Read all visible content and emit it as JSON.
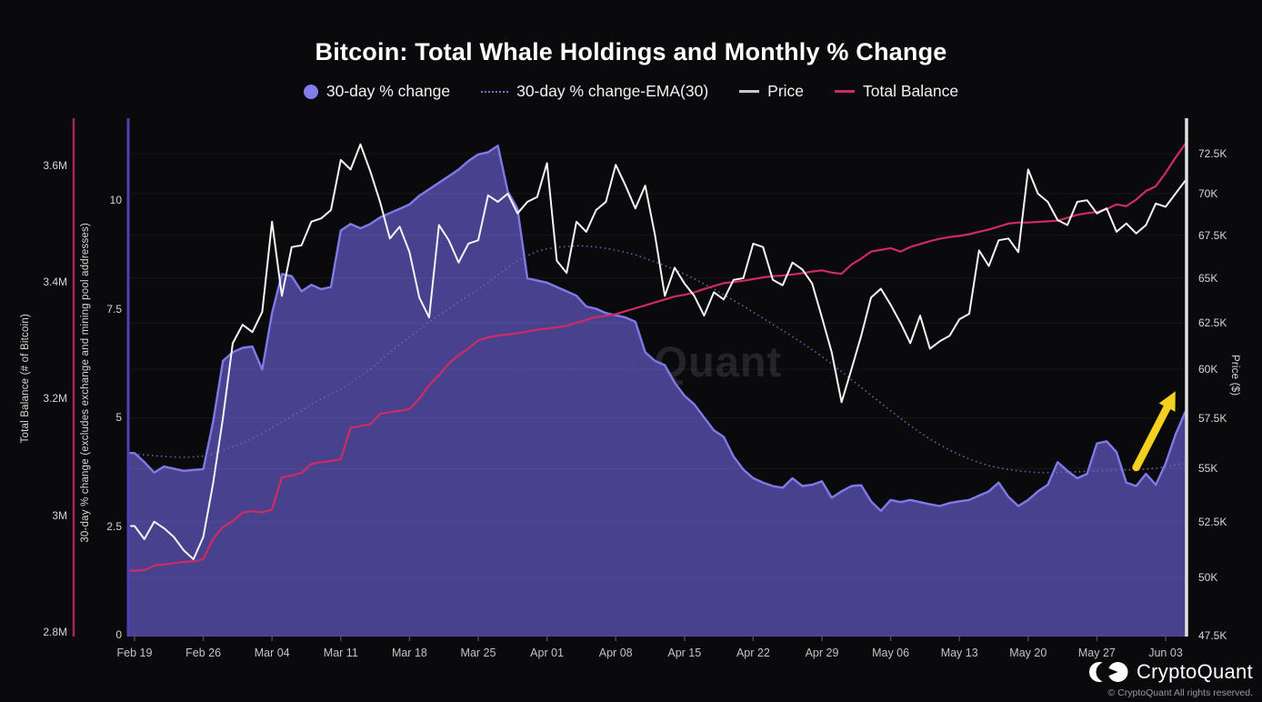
{
  "title": "Bitcoin: Total Whale Holdings and Monthly % Change",
  "watermark": "CryptoQuant",
  "branding": {
    "logo_text": "CryptoQuant",
    "copyright": "© CryptoQuant All rights reserved."
  },
  "legend": {
    "items": [
      {
        "label": "30-day % change",
        "marker": "circle",
        "color": "#817ee9"
      },
      {
        "label": "30-day % change-EMA(30)",
        "marker": "dotted-line",
        "color": "#7a70cf"
      },
      {
        "label": "Price",
        "marker": "dash",
        "color": "#c9c9c9"
      },
      {
        "label": "Total Balance",
        "marker": "dash",
        "color": "#cf2b63"
      }
    ]
  },
  "axes": {
    "left_balance": {
      "title": "Total Balance (# of Bitcoin)",
      "tick_labels": [
        "2.8M",
        "3M",
        "3.2M",
        "3.4M",
        "3.6M"
      ],
      "tick_values": [
        2.8,
        3.0,
        3.2,
        3.4,
        3.6
      ],
      "axis_color": "#a62457",
      "scale": "linear"
    },
    "left_pct": {
      "title": "30-day % change (excludes exchange and mining pool addresses)",
      "tick_labels": [
        "0",
        "2.5",
        "5",
        "7.5",
        "10"
      ],
      "tick_values": [
        0,
        2.5,
        5,
        7.5,
        10
      ],
      "axis_color": "#4a41b4",
      "scale": "linear"
    },
    "right_price": {
      "title": "Price ($)",
      "tick_labels": [
        "47.5K",
        "50K",
        "52.5K",
        "55K",
        "57.5K",
        "60K",
        "62.5K",
        "65K",
        "67.5K",
        "70K",
        "72.5K"
      ],
      "tick_values": [
        47.5,
        50,
        52.5,
        55,
        57.5,
        60,
        62.5,
        65,
        67.5,
        70,
        72.5
      ],
      "axis_color": "#e0e0e0",
      "scale": "log"
    },
    "x": {
      "tick_labels": [
        "Feb 19",
        "Feb 26",
        "Mar 04",
        "Mar 11",
        "Mar 18",
        "Mar 25",
        "Apr 01",
        "Apr 08",
        "Apr 15",
        "Apr 22",
        "Apr 29",
        "May 06",
        "May 13",
        "May 20",
        "May 27",
        "Jun 03"
      ],
      "tick_day_indices": [
        0,
        7,
        14,
        21,
        28,
        35,
        42,
        49,
        56,
        63,
        70,
        77,
        84,
        91,
        98,
        105
      ]
    }
  },
  "chart_data": {
    "type": "area+line multi-series, dual left axes (linear) + right axis (log)",
    "title": "Bitcoin: Total Whale Holdings and Monthly % Change",
    "grid": "horizontal lines at price ticks",
    "legend_position": "top-center",
    "x_dates": [
      "Feb 19",
      "Feb 20",
      "Feb 21",
      "Feb 22",
      "Feb 23",
      "Feb 24",
      "Feb 25",
      "Feb 26",
      "Feb 27",
      "Feb 28",
      "Feb 29",
      "Mar 01",
      "Mar 02",
      "Mar 03",
      "Mar 04",
      "Mar 05",
      "Mar 06",
      "Mar 07",
      "Mar 08",
      "Mar 09",
      "Mar 10",
      "Mar 11",
      "Mar 12",
      "Mar 13",
      "Mar 14",
      "Mar 15",
      "Mar 16",
      "Mar 17",
      "Mar 18",
      "Mar 19",
      "Mar 20",
      "Mar 21",
      "Mar 22",
      "Mar 23",
      "Mar 24",
      "Mar 25",
      "Mar 26",
      "Mar 27",
      "Mar 28",
      "Mar 29",
      "Mar 30",
      "Mar 31",
      "Apr 01",
      "Apr 02",
      "Apr 03",
      "Apr 04",
      "Apr 05",
      "Apr 06",
      "Apr 07",
      "Apr 08",
      "Apr 09",
      "Apr 10",
      "Apr 11",
      "Apr 12",
      "Apr 13",
      "Apr 14",
      "Apr 15",
      "Apr 16",
      "Apr 17",
      "Apr 18",
      "Apr 19",
      "Apr 20",
      "Apr 21",
      "Apr 22",
      "Apr 23",
      "Apr 24",
      "Apr 25",
      "Apr 26",
      "Apr 27",
      "Apr 28",
      "Apr 29",
      "Apr 30",
      "May 01",
      "May 02",
      "May 03",
      "May 04",
      "May 05",
      "May 06",
      "May 07",
      "May 08",
      "May 09",
      "May 10",
      "May 11",
      "May 12",
      "May 13",
      "May 14",
      "May 15",
      "May 16",
      "May 17",
      "May 18",
      "May 19",
      "May 20",
      "May 21",
      "May 22",
      "May 23",
      "May 24",
      "May 25",
      "May 26",
      "May 27",
      "May 28",
      "May 29",
      "May 30",
      "May 31",
      "Jun 01",
      "Jun 02",
      "Jun 03",
      "Jun 04",
      "Jun 05"
    ],
    "series": [
      {
        "name": "30-day % change",
        "type": "area",
        "axis": "left_pct",
        "ylim": [
          0,
          12
        ],
        "line_color": "#807ae8",
        "fill_color": "#4b4494",
        "values": [
          4.18,
          3.97,
          3.73,
          3.87,
          3.82,
          3.77,
          3.79,
          3.81,
          4.9,
          6.3,
          6.5,
          6.6,
          6.63,
          6.1,
          7.4,
          8.3,
          8.25,
          7.9,
          8.05,
          7.95,
          8.0,
          9.3,
          9.45,
          9.35,
          9.45,
          9.6,
          9.7,
          9.8,
          9.9,
          10.1,
          10.25,
          10.4,
          10.55,
          10.7,
          10.9,
          11.05,
          11.1,
          11.25,
          10.2,
          9.8,
          8.2,
          8.15,
          8.1,
          8.0,
          7.9,
          7.8,
          7.55,
          7.5,
          7.4,
          7.35,
          7.3,
          7.2,
          6.5,
          6.3,
          6.2,
          5.8,
          5.5,
          5.3,
          5.0,
          4.7,
          4.55,
          4.1,
          3.8,
          3.6,
          3.5,
          3.42,
          3.38,
          3.6,
          3.42,
          3.45,
          3.53,
          3.15,
          3.3,
          3.42,
          3.44,
          3.07,
          2.85,
          3.1,
          3.05,
          3.1,
          3.05,
          3.0,
          2.96,
          3.03,
          3.07,
          3.1,
          3.2,
          3.3,
          3.5,
          3.17,
          2.96,
          3.1,
          3.3,
          3.45,
          3.97,
          3.77,
          3.6,
          3.7,
          4.4,
          4.45,
          4.2,
          3.5,
          3.42,
          3.7,
          3.45,
          3.94,
          4.6,
          5.13
        ]
      },
      {
        "name": "30-day % change-EMA(30)",
        "type": "line-dotted",
        "axis": "left_pct",
        "line_color": "#7165c2",
        "values": [
          4.16,
          4.14,
          4.12,
          4.1,
          4.09,
          4.08,
          4.09,
          4.11,
          4.15,
          4.25,
          4.33,
          4.4,
          4.52,
          4.63,
          4.76,
          4.9,
          5.02,
          5.15,
          5.3,
          5.42,
          5.54,
          5.65,
          5.8,
          5.95,
          6.1,
          6.3,
          6.5,
          6.68,
          6.85,
          7.02,
          7.2,
          7.35,
          7.5,
          7.65,
          7.8,
          7.95,
          8.1,
          8.28,
          8.45,
          8.6,
          8.72,
          8.82,
          8.88,
          8.91,
          8.93,
          8.95,
          8.94,
          8.92,
          8.89,
          8.85,
          8.8,
          8.74,
          8.66,
          8.58,
          8.49,
          8.4,
          8.3,
          8.19,
          8.07,
          7.95,
          7.82,
          7.69,
          7.56,
          7.42,
          7.28,
          7.14,
          7.0,
          6.86,
          6.71,
          6.56,
          6.4,
          6.23,
          6.05,
          5.87,
          5.69,
          5.51,
          5.33,
          5.15,
          4.98,
          4.81,
          4.65,
          4.5,
          4.37,
          4.25,
          4.14,
          4.04,
          3.96,
          3.89,
          3.84,
          3.8,
          3.77,
          3.75,
          3.73,
          3.73,
          3.73,
          3.74,
          3.75,
          3.76,
          3.77,
          3.78,
          3.79,
          3.79,
          3.8,
          3.81,
          3.83,
          3.86,
          3.9,
          3.94
        ]
      },
      {
        "name": "Price",
        "type": "line",
        "axis": "right_price",
        "unit": "K USD",
        "line_color": "#f5f5f5",
        "values": [
          52.3,
          51.7,
          52.5,
          52.2,
          51.8,
          51.2,
          50.8,
          51.8,
          54.3,
          57.5,
          61.4,
          62.4,
          62.0,
          63.1,
          68.3,
          64.0,
          66.8,
          66.9,
          68.3,
          68.5,
          69.0,
          72.1,
          71.5,
          73.1,
          71.4,
          69.5,
          67.3,
          68.0,
          66.5,
          63.9,
          62.8,
          68.1,
          67.2,
          65.9,
          67.0,
          67.2,
          69.9,
          69.5,
          70.0,
          68.8,
          69.5,
          69.8,
          71.9,
          66.0,
          65.3,
          68.3,
          67.7,
          69.0,
          69.5,
          71.8,
          70.5,
          69.1,
          70.5,
          67.5,
          64.0,
          65.6,
          64.7,
          64.0,
          62.9,
          64.2,
          63.8,
          64.9,
          65.0,
          67.0,
          66.8,
          64.9,
          64.6,
          65.9,
          65.5,
          64.7,
          62.8,
          60.9,
          58.3,
          60.0,
          61.8,
          63.9,
          64.4,
          63.5,
          62.5,
          61.4,
          62.9,
          61.1,
          61.5,
          61.8,
          62.7,
          63.0,
          66.6,
          65.7,
          67.2,
          67.3,
          66.5,
          71.5,
          70.0,
          69.5,
          68.4,
          68.1,
          69.5,
          69.6,
          68.8,
          69.1,
          67.7,
          68.2,
          67.6,
          68.1,
          69.4,
          69.2,
          70.0,
          70.8
        ]
      },
      {
        "name": "Total Balance",
        "type": "line",
        "axis": "left_balance",
        "unit": "M BTC",
        "line_color": "#cf2b63",
        "values": [
          2.905,
          2.906,
          2.914,
          2.916,
          2.918,
          2.92,
          2.921,
          2.925,
          2.96,
          2.98,
          2.99,
          3.005,
          3.007,
          3.005,
          3.01,
          3.065,
          3.068,
          3.073,
          3.088,
          3.091,
          3.093,
          3.096,
          3.15,
          3.153,
          3.156,
          3.174,
          3.177,
          3.179,
          3.182,
          3.2,
          3.223,
          3.24,
          3.26,
          3.275,
          3.286,
          3.3,
          3.305,
          3.308,
          3.31,
          3.312,
          3.315,
          3.318,
          3.32,
          3.322,
          3.325,
          3.33,
          3.335,
          3.34,
          3.342,
          3.345,
          3.35,
          3.355,
          3.36,
          3.365,
          3.37,
          3.375,
          3.378,
          3.382,
          3.388,
          3.393,
          3.398,
          3.4,
          3.402,
          3.405,
          3.408,
          3.41,
          3.411,
          3.413,
          3.415,
          3.418,
          3.42,
          3.416,
          3.414,
          3.43,
          3.44,
          3.452,
          3.455,
          3.458,
          3.452,
          3.46,
          3.465,
          3.47,
          3.474,
          3.477,
          3.479,
          3.482,
          3.486,
          3.49,
          3.495,
          3.5,
          3.502,
          3.502,
          3.503,
          3.504,
          3.505,
          3.51,
          3.515,
          3.518,
          3.52,
          3.525,
          3.533,
          3.53,
          3.541,
          3.556,
          3.564,
          3.587,
          3.613,
          3.637
        ]
      }
    ],
    "annotation": {
      "type": "arrow",
      "color": "#f4d01f",
      "from": {
        "date": "May 31",
        "pct": 3.85
      },
      "to": {
        "date": "Jun 04",
        "pct": 5.6
      }
    }
  }
}
